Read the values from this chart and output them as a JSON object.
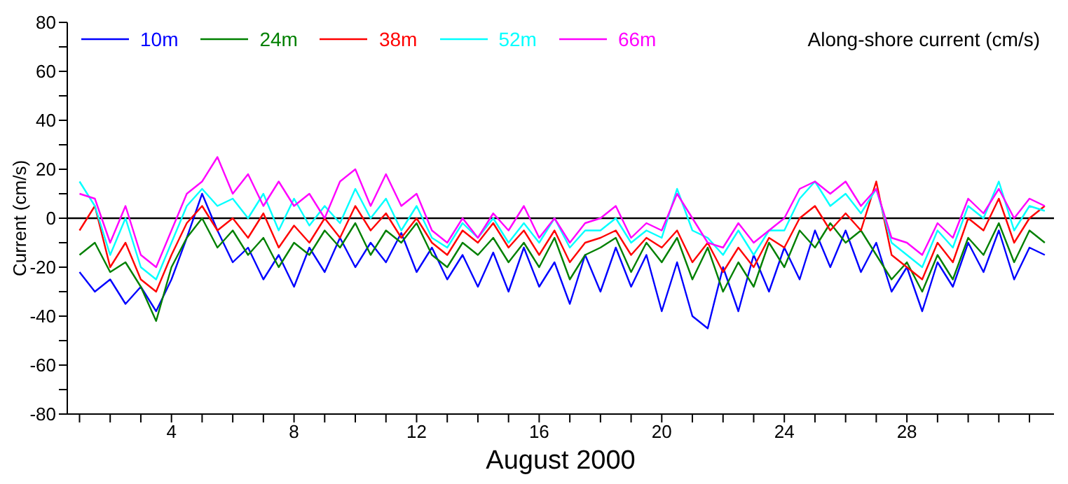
{
  "chart_data": {
    "type": "line",
    "title": "Along-shore current (cm/s)",
    "xlabel": "August 2000",
    "ylabel": "Current (cm/s)",
    "x": [
      1,
      1.5,
      2,
      2.5,
      3,
      3.5,
      4,
      4.5,
      5,
      5.5,
      6,
      6.5,
      7,
      7.5,
      8,
      8.5,
      9,
      9.5,
      10,
      10.5,
      11,
      11.5,
      12,
      12.5,
      13,
      13.5,
      14,
      14.5,
      15,
      15.5,
      16,
      16.5,
      17,
      17.5,
      18,
      18.5,
      19,
      19.5,
      20,
      20.5,
      21,
      21.5,
      22,
      22.5,
      23,
      23.5,
      24,
      24.5,
      25,
      25.5,
      26,
      26.5,
      27,
      27.5,
      28,
      28.5,
      29,
      29.5,
      30,
      30.5,
      31,
      31.5,
      32,
      32.5
    ],
    "series": [
      {
        "name": "10m",
        "color": "#0000ff",
        "values": [
          -22,
          -30,
          -25,
          -35,
          -28,
          -38,
          -25,
          -8,
          10,
          -5,
          -18,
          -12,
          -25,
          -15,
          -28,
          -12,
          -22,
          -8,
          -20,
          -10,
          -18,
          -6,
          -22,
          -12,
          -25,
          -15,
          -28,
          -14,
          -30,
          -12,
          -28,
          -18,
          -35,
          -15,
          -30,
          -12,
          -28,
          -15,
          -38,
          -18,
          -40,
          -45,
          -20,
          -38,
          -15,
          -30,
          -12,
          -25,
          -5,
          -20,
          -5,
          -22,
          -10,
          -30,
          -20,
          -38,
          -18,
          -28,
          -10,
          -22,
          -5,
          -25,
          -12,
          -15
        ]
      },
      {
        "name": "24m",
        "color": "#008000",
        "values": [
          -15,
          -10,
          -22,
          -18,
          -28,
          -42,
          -20,
          -8,
          0,
          -12,
          -5,
          -15,
          -8,
          -20,
          -10,
          -15,
          -5,
          -12,
          -2,
          -15,
          -5,
          -10,
          -2,
          -15,
          -20,
          -10,
          -15,
          -8,
          -18,
          -10,
          -20,
          -8,
          -25,
          -15,
          -12,
          -8,
          -22,
          -10,
          -18,
          -8,
          -25,
          -12,
          -30,
          -18,
          -28,
          -10,
          -20,
          -5,
          -12,
          -2,
          -10,
          -5,
          -15,
          -25,
          -18,
          -30,
          -15,
          -25,
          -8,
          -15,
          -2,
          -18,
          -5,
          -10
        ]
      },
      {
        "name": "38m",
        "color": "#ff0000",
        "values": [
          -5,
          5,
          -20,
          -10,
          -25,
          -30,
          -15,
          -2,
          5,
          -5,
          0,
          -8,
          2,
          -12,
          -3,
          -10,
          0,
          -8,
          5,
          -5,
          2,
          -8,
          0,
          -10,
          -15,
          -5,
          -10,
          -2,
          -12,
          -5,
          -15,
          -5,
          -18,
          -10,
          -8,
          -5,
          -15,
          -8,
          -12,
          -5,
          -18,
          -10,
          -22,
          -12,
          -20,
          -8,
          -12,
          0,
          5,
          -5,
          2,
          -5,
          15,
          -15,
          -20,
          -25,
          -10,
          -18,
          0,
          -5,
          8,
          -10,
          0,
          5
        ]
      },
      {
        "name": "52m",
        "color": "#00ffff",
        "values": [
          15,
          5,
          -15,
          0,
          -20,
          -25,
          -10,
          5,
          12,
          5,
          8,
          0,
          10,
          -5,
          8,
          -3,
          5,
          -2,
          12,
          0,
          8,
          -5,
          5,
          -8,
          -12,
          -2,
          -8,
          0,
          -10,
          -2,
          -10,
          0,
          -12,
          -5,
          -5,
          0,
          -10,
          -5,
          -8,
          12,
          -5,
          -8,
          -15,
          -5,
          -15,
          -5,
          -5,
          8,
          15,
          5,
          10,
          2,
          12,
          -10,
          -15,
          -20,
          -5,
          -12,
          5,
          0,
          15,
          -5,
          5,
          3
        ]
      },
      {
        "name": "66m",
        "color": "#ff00ff",
        "values": [
          10,
          8,
          -10,
          5,
          -15,
          -20,
          -5,
          10,
          15,
          25,
          10,
          18,
          5,
          15,
          5,
          10,
          0,
          15,
          20,
          5,
          18,
          5,
          10,
          -5,
          -10,
          0,
          -8,
          2,
          -5,
          5,
          -8,
          0,
          -10,
          -2,
          0,
          5,
          -8,
          -2,
          -5,
          10,
          0,
          -10,
          -12,
          -2,
          -10,
          -5,
          0,
          12,
          15,
          10,
          15,
          5,
          12,
          -8,
          -10,
          -15,
          -2,
          -8,
          8,
          2,
          12,
          0,
          8,
          5
        ]
      }
    ],
    "xlim": [
      0.6,
      32.8
    ],
    "xticks": [
      {
        "value": 1,
        "label": null
      },
      {
        "value": 2,
        "label": null
      },
      {
        "value": 3,
        "label": null
      },
      4,
      {
        "value": 5,
        "label": null
      },
      {
        "value": 6,
        "label": null
      },
      {
        "value": 7,
        "label": null
      },
      8,
      {
        "value": 9,
        "label": null
      },
      {
        "value": 10,
        "label": null
      },
      {
        "value": 11,
        "label": null
      },
      12,
      {
        "value": 13,
        "label": null
      },
      {
        "value": 14,
        "label": null
      },
      {
        "value": 15,
        "label": null
      },
      16,
      {
        "value": 17,
        "label": null
      },
      {
        "value": 18,
        "label": null
      },
      {
        "value": 19,
        "label": null
      },
      20,
      {
        "value": 21,
        "label": null
      },
      {
        "value": 22,
        "label": null
      },
      {
        "value": 23,
        "label": null
      },
      24,
      {
        "value": 25,
        "label": null
      },
      {
        "value": 26,
        "label": null
      },
      {
        "value": 27,
        "label": null
      },
      28,
      {
        "value": 29,
        "label": null
      },
      {
        "value": 30,
        "label": null
      },
      {
        "value": 31,
        "label": null
      },
      {
        "value": 32,
        "label": null
      }
    ],
    "ylim": [
      -80,
      80
    ],
    "yticks": [
      -80,
      {
        "value": -70,
        "label": null
      },
      -60,
      {
        "value": -50,
        "label": null
      },
      -40,
      {
        "value": -30,
        "label": null
      },
      -20,
      {
        "value": -10,
        "label": null
      },
      0,
      {
        "value": 10,
        "label": null
      },
      20,
      {
        "value": 30,
        "label": null
      },
      40,
      {
        "value": 50,
        "label": null
      },
      60,
      {
        "value": 70,
        "label": null
      },
      80
    ],
    "ref_lines": [
      {
        "axis": "y",
        "value": 0,
        "color": "#000000"
      }
    ],
    "legend": "top left",
    "grid": false,
    "marker": "none",
    "line_style": "solid"
  }
}
